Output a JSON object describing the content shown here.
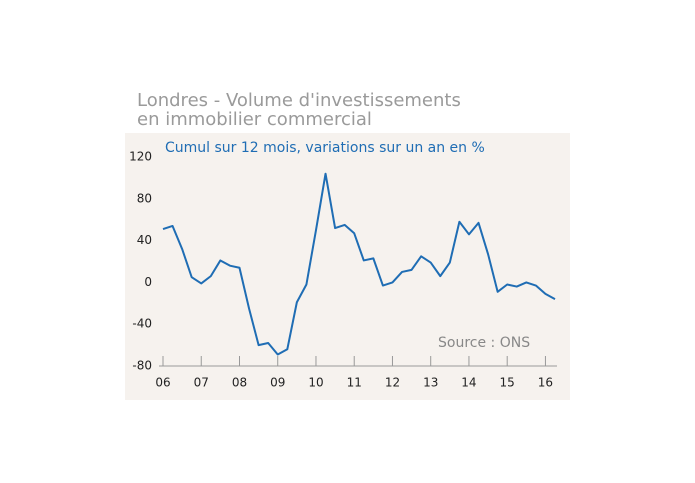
{
  "chart_data": {
    "type": "line",
    "title": "Londres - Volume d'investissements",
    "title_line2": "en immobilier commercial",
    "subtitle": "Cumul sur 12 mois, variations sur un an en %",
    "annotation": "Source : ONS",
    "x": [
      6,
      6.25,
      6.5,
      6.75,
      7,
      7.25,
      7.5,
      7.75,
      8,
      8.25,
      8.5,
      8.75,
      9,
      9.25,
      9.5,
      9.75,
      10,
      10.25,
      10.5,
      10.75,
      11,
      11.25,
      11.5,
      11.75,
      12,
      12.25,
      12.5,
      12.75,
      13,
      13.25,
      13.5,
      13.75,
      14,
      14.25,
      14.5,
      14.75,
      15,
      15.25,
      15.5,
      15.75,
      16,
      16.25
    ],
    "series": [
      {
        "color": "#1f6db4",
        "values": [
          51,
          54,
          32,
          5,
          -1,
          6,
          21,
          16,
          14,
          -25,
          -60,
          -58,
          -69,
          -64,
          -19,
          -2,
          50,
          104,
          52,
          55,
          47,
          21,
          23,
          -3,
          0,
          10,
          12,
          25,
          19,
          6,
          19,
          58,
          46,
          57,
          27,
          -9,
          -2,
          -4,
          0,
          -3,
          -11,
          -16
        ]
      }
    ],
    "xlim": [
      6,
      16.25
    ],
    "xticks": [
      {
        "value": 6,
        "label": "06"
      },
      {
        "value": 7,
        "label": "07"
      },
      {
        "value": 8,
        "label": "08"
      },
      {
        "value": 9,
        "label": "09"
      },
      {
        "value": 10,
        "label": "10"
      },
      {
        "value": 11,
        "label": "11"
      },
      {
        "value": 12,
        "label": "12"
      },
      {
        "value": 13,
        "label": "13"
      },
      {
        "value": 14,
        "label": "14"
      },
      {
        "value": 15,
        "label": "15"
      },
      {
        "value": 16,
        "label": "16"
      }
    ],
    "ylim": [
      -80,
      120
    ],
    "yticks": [
      -80,
      -40,
      0,
      40,
      80,
      120
    ],
    "grid": false
  }
}
